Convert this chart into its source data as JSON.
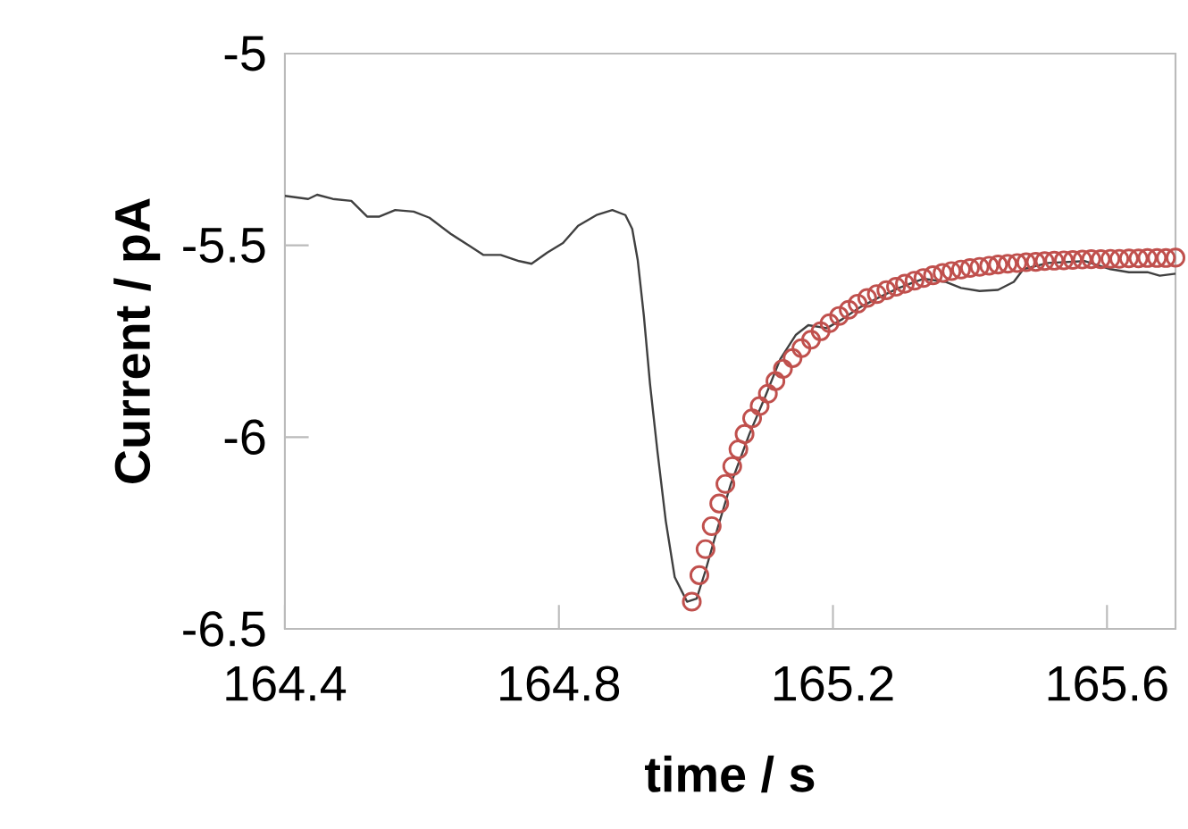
{
  "chart_data": {
    "type": "line",
    "xlabel": "time / s",
    "ylabel": "Current / pA",
    "xlim": [
      164.4,
      165.7
    ],
    "ylim": [
      -6.5,
      -5
    ],
    "xticks": [
      164.4,
      164.8,
      165.2,
      165.6
    ],
    "yticks": [
      -6.5,
      -6,
      -5.5,
      -5
    ],
    "series": [
      {
        "color": "#404040",
        "marker": "none",
        "x": [
          164.4,
          164.434,
          164.447,
          164.47,
          164.497,
          164.52,
          164.538,
          164.561,
          164.588,
          164.611,
          164.642,
          164.67,
          164.69,
          164.715,
          164.742,
          164.76,
          164.783,
          164.806,
          164.828,
          164.856,
          164.878,
          164.897,
          164.907,
          164.915,
          164.924,
          164.933,
          164.944,
          164.956,
          164.969,
          164.987,
          165.001,
          165.014,
          165.032,
          165.051,
          165.078,
          165.101,
          165.123,
          165.146,
          165.164,
          165.191,
          165.214,
          165.241,
          165.268,
          165.296,
          165.332,
          165.364,
          165.387,
          165.414,
          165.441,
          165.464,
          165.478,
          165.514,
          165.568,
          165.605,
          165.632,
          165.659,
          165.677,
          165.7
        ],
        "values": [
          -5.371,
          -5.379,
          -5.368,
          -5.379,
          -5.384,
          -5.425,
          -5.425,
          -5.408,
          -5.412,
          -5.428,
          -5.47,
          -5.502,
          -5.525,
          -5.525,
          -5.541,
          -5.548,
          -5.519,
          -5.494,
          -5.449,
          -5.42,
          -5.408,
          -5.421,
          -5.457,
          -5.538,
          -5.684,
          -5.862,
          -6.04,
          -6.219,
          -6.365,
          -6.429,
          -6.421,
          -6.348,
          -6.235,
          -6.122,
          -5.992,
          -5.895,
          -5.797,
          -5.733,
          -5.708,
          -5.716,
          -5.692,
          -5.66,
          -5.635,
          -5.611,
          -5.587,
          -5.595,
          -5.611,
          -5.619,
          -5.616,
          -5.595,
          -5.562,
          -5.546,
          -5.541,
          -5.562,
          -5.57,
          -5.57,
          -5.579,
          -5.574
        ]
      },
      {
        "type": "scatter",
        "color": "#c0504d",
        "marker": "circle",
        "x": [
          164.994,
          165.005,
          165.014,
          165.023,
          165.034,
          165.043,
          165.053,
          165.062,
          165.071,
          165.082,
          165.093,
          165.105,
          165.116,
          165.127,
          165.141,
          165.154,
          165.168,
          165.182,
          165.195,
          165.209,
          165.223,
          165.236,
          165.25,
          165.264,
          165.278,
          165.292,
          165.305,
          165.319,
          165.332,
          165.346,
          165.36,
          165.373,
          165.387,
          165.4,
          165.414,
          165.428,
          165.441,
          165.455,
          165.469,
          165.482,
          165.496,
          165.509,
          165.523,
          165.537,
          165.55,
          165.564,
          165.577,
          165.591,
          165.605,
          165.618,
          165.632,
          165.646,
          165.659,
          165.673,
          165.686,
          165.7
        ],
        "values": [
          -6.429,
          -6.36,
          -6.292,
          -6.232,
          -6.173,
          -6.122,
          -6.076,
          -6.032,
          -5.992,
          -5.951,
          -5.919,
          -5.887,
          -5.854,
          -5.822,
          -5.794,
          -5.768,
          -5.746,
          -5.724,
          -5.703,
          -5.684,
          -5.668,
          -5.652,
          -5.637,
          -5.627,
          -5.617,
          -5.608,
          -5.6,
          -5.592,
          -5.585,
          -5.578,
          -5.572,
          -5.567,
          -5.563,
          -5.559,
          -5.556,
          -5.553,
          -5.55,
          -5.548,
          -5.546,
          -5.544,
          -5.543,
          -5.541,
          -5.54,
          -5.539,
          -5.538,
          -5.537,
          -5.536,
          -5.536,
          -5.535,
          -5.535,
          -5.534,
          -5.534,
          -5.533,
          -5.533,
          -5.533,
          -5.532
        ]
      }
    ]
  }
}
